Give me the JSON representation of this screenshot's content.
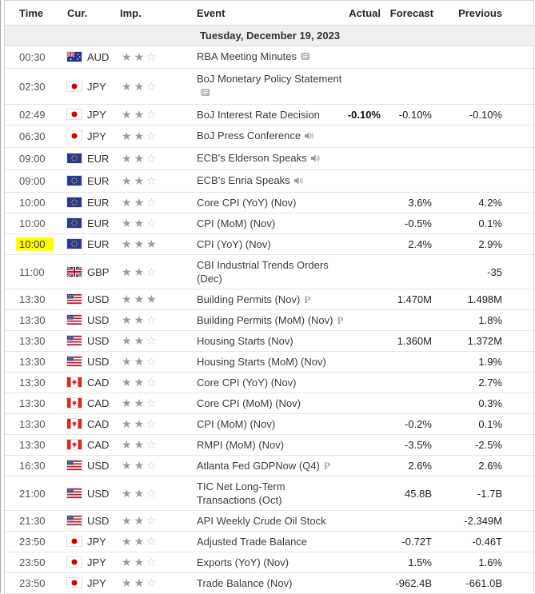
{
  "table": {
    "columns": {
      "time": "Time",
      "currency": "Cur.",
      "importance": "Imp.",
      "event": "Event",
      "actual": "Actual",
      "forecast": "Forecast",
      "previous": "Previous"
    },
    "date_header": "Tuesday, December 19, 2023",
    "colors": {
      "highlight": "#ffff00",
      "star_filled": "#9b9b9b",
      "star_empty": "#c9c9c9",
      "date_band_bg": "#efefef",
      "row_border": "#e6e6e6"
    },
    "flags": {
      "AUD": "australia-flag",
      "JPY": "japan-flag",
      "EUR": "eu-flag",
      "GBP": "uk-flag",
      "USD": "us-flag",
      "CAD": "canada-flag"
    },
    "rows": [
      {
        "time": "00:30",
        "currency": "AUD",
        "importance": 2,
        "event": "RBA Meeting Minutes",
        "event_icon": "report-icon",
        "actual": "",
        "forecast": "",
        "previous": "",
        "highlight": false
      },
      {
        "time": "02:30",
        "currency": "JPY",
        "importance": 2,
        "event": "BoJ Monetary Policy Statement",
        "event_icon": "report-icon",
        "actual": "",
        "forecast": "",
        "previous": "",
        "highlight": false
      },
      {
        "time": "02:49",
        "currency": "JPY",
        "importance": 2,
        "event": "BoJ Interest Rate Decision",
        "event_icon": "",
        "actual": "-0.10%",
        "forecast": "-0.10%",
        "previous": "-0.10%",
        "highlight": false
      },
      {
        "time": "06:30",
        "currency": "JPY",
        "importance": 2,
        "event": "BoJ Press Conference",
        "event_icon": "speaker-icon",
        "actual": "",
        "forecast": "",
        "previous": "",
        "highlight": false
      },
      {
        "time": "09:00",
        "currency": "EUR",
        "importance": 2,
        "event": "ECB's Elderson Speaks",
        "event_icon": "speaker-icon",
        "actual": "",
        "forecast": "",
        "previous": "",
        "highlight": false
      },
      {
        "time": "09:00",
        "currency": "EUR",
        "importance": 2,
        "event": "ECB's Enria Speaks",
        "event_icon": "speaker-icon",
        "actual": "",
        "forecast": "",
        "previous": "",
        "highlight": false
      },
      {
        "time": "10:00",
        "currency": "EUR",
        "importance": 2,
        "event": "Core CPI (YoY) (Nov)",
        "event_icon": "",
        "actual": "",
        "forecast": "3.6%",
        "previous": "4.2%",
        "highlight": false
      },
      {
        "time": "10:00",
        "currency": "EUR",
        "importance": 2,
        "event": "CPI (MoM) (Nov)",
        "event_icon": "",
        "actual": "",
        "forecast": "-0.5%",
        "previous": "0.1%",
        "highlight": false
      },
      {
        "time": "10:00",
        "currency": "EUR",
        "importance": 3,
        "event": "CPI (YoY) (Nov)",
        "event_icon": "",
        "actual": "",
        "forecast": "2.4%",
        "previous": "2.9%",
        "highlight": true
      },
      {
        "time": "11:00",
        "currency": "GBP",
        "importance": 2,
        "event": "CBI Industrial Trends Orders (Dec)",
        "event_icon": "",
        "actual": "",
        "forecast": "",
        "previous": "-35",
        "highlight": false
      },
      {
        "time": "13:30",
        "currency": "USD",
        "importance": 3,
        "event": "Building Permits (Nov)",
        "event_icon": "preliminary-icon",
        "actual": "",
        "forecast": "1.470M",
        "previous": "1.498M",
        "highlight": false
      },
      {
        "time": "13:30",
        "currency": "USD",
        "importance": 2,
        "event": "Building Permits (MoM) (Nov)",
        "event_icon": "preliminary-icon",
        "actual": "",
        "forecast": "",
        "previous": "1.8%",
        "highlight": false
      },
      {
        "time": "13:30",
        "currency": "USD",
        "importance": 2,
        "event": "Housing Starts (Nov)",
        "event_icon": "",
        "actual": "",
        "forecast": "1.360M",
        "previous": "1.372M",
        "highlight": false
      },
      {
        "time": "13:30",
        "currency": "USD",
        "importance": 2,
        "event": "Housing Starts (MoM) (Nov)",
        "event_icon": "",
        "actual": "",
        "forecast": "",
        "previous": "1.9%",
        "highlight": false
      },
      {
        "time": "13:30",
        "currency": "CAD",
        "importance": 2,
        "event": "Core CPI (YoY) (Nov)",
        "event_icon": "",
        "actual": "",
        "forecast": "",
        "previous": "2.7%",
        "highlight": false
      },
      {
        "time": "13:30",
        "currency": "CAD",
        "importance": 2,
        "event": "Core CPI (MoM) (Nov)",
        "event_icon": "",
        "actual": "",
        "forecast": "",
        "previous": "0.3%",
        "highlight": false
      },
      {
        "time": "13:30",
        "currency": "CAD",
        "importance": 2,
        "event": "CPI (MoM) (Nov)",
        "event_icon": "",
        "actual": "",
        "forecast": "-0.2%",
        "previous": "0.1%",
        "highlight": false
      },
      {
        "time": "13:30",
        "currency": "CAD",
        "importance": 2,
        "event": "RMPI (MoM) (Nov)",
        "event_icon": "",
        "actual": "",
        "forecast": "-3.5%",
        "previous": "-2.5%",
        "highlight": false
      },
      {
        "time": "16:30",
        "currency": "USD",
        "importance": 2,
        "event": "Atlanta Fed GDPNow (Q4)",
        "event_icon": "preliminary-icon",
        "actual": "",
        "forecast": "2.6%",
        "previous": "2.6%",
        "highlight": false
      },
      {
        "time": "21:00",
        "currency": "USD",
        "importance": 2,
        "event": "TIC Net Long-Term Transactions (Oct)",
        "event_icon": "",
        "actual": "",
        "forecast": "45.8B",
        "previous": "-1.7B",
        "highlight": false
      },
      {
        "time": "21:30",
        "currency": "USD",
        "importance": 2,
        "event": "API Weekly Crude Oil Stock",
        "event_icon": "",
        "actual": "",
        "forecast": "",
        "previous": "-2.349M",
        "highlight": false
      },
      {
        "time": "23:50",
        "currency": "JPY",
        "importance": 2,
        "event": "Adjusted Trade Balance",
        "event_icon": "",
        "actual": "",
        "forecast": "-0.72T",
        "previous": "-0.46T",
        "highlight": false
      },
      {
        "time": "23:50",
        "currency": "JPY",
        "importance": 2,
        "event": "Exports (YoY) (Nov)",
        "event_icon": "",
        "actual": "",
        "forecast": "1.5%",
        "previous": "1.6%",
        "highlight": false
      },
      {
        "time": "23:50",
        "currency": "JPY",
        "importance": 2,
        "event": "Trade Balance (Nov)",
        "event_icon": "",
        "actual": "",
        "forecast": "-962.4B",
        "previous": "-661.0B",
        "highlight": false
      }
    ]
  }
}
